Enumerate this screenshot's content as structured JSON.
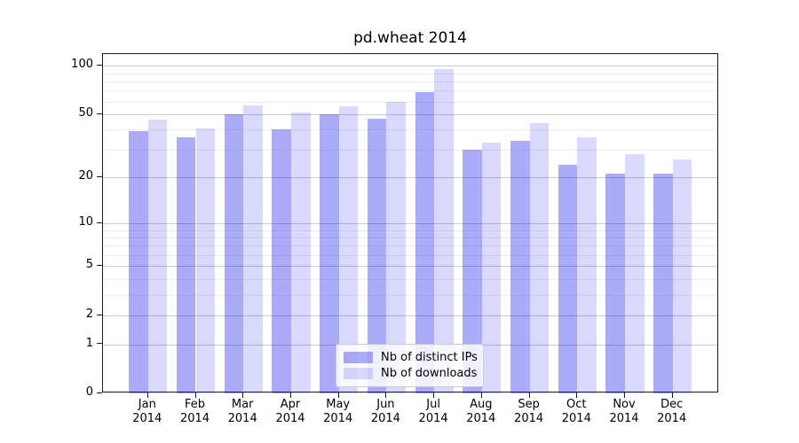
{
  "chart_data": {
    "type": "bar",
    "title": "pd.wheat 2014",
    "categories": [
      "Jan",
      "Feb",
      "Mar",
      "Apr",
      "May",
      "Jun",
      "Jul",
      "Aug",
      "Sep",
      "Oct",
      "Nov",
      "Dec"
    ],
    "category_year": "2014",
    "series": [
      {
        "name": "Nb of distinct IPs",
        "color_hex": "#aaaaf8",
        "color_rgba": "rgba(0,0,240,0.33)",
        "values": [
          39,
          36,
          50,
          40,
          50,
          47,
          69,
          30,
          34,
          24,
          21,
          21
        ]
      },
      {
        "name": "Nb of downloads",
        "color_hex": "#d9d9fa",
        "color_rgba": "rgba(0,0,240,0.15)",
        "values": [
          46,
          41,
          57,
          51,
          56,
          60,
          95,
          33,
          44,
          36,
          28,
          26
        ]
      }
    ],
    "yscale": "log1p",
    "yticks": [
      0,
      1,
      2,
      5,
      10,
      20,
      50,
      100
    ],
    "minor_gridlines": [
      3,
      4,
      6,
      7,
      8,
      9,
      30,
      40,
      60,
      70,
      80,
      90
    ],
    "ylim": [
      0,
      118
    ],
    "grid": true,
    "legend_position": "lower center",
    "axis_color": "#1a1a1a",
    "grid_major_color": "#cccccc",
    "grid_minor_color": "#ececec"
  }
}
